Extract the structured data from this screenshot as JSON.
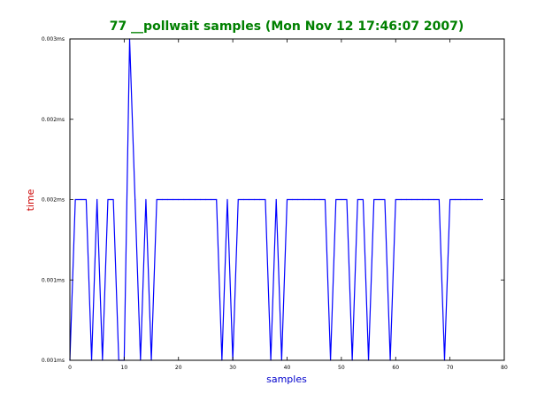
{
  "chart_data": {
    "type": "line",
    "title": "77 __pollwait samples (Mon Nov 12 17:46:07 2007)",
    "xlabel": "samples",
    "ylabel": "time",
    "xlim": [
      0,
      80
    ],
    "ylim": [
      0.0005,
      0.0025
    ],
    "x_ticks": [
      0,
      10,
      20,
      30,
      40,
      50,
      60,
      70,
      80
    ],
    "x_tick_labels": [
      "0",
      "10",
      "20",
      "30",
      "40",
      "50",
      "60",
      "70",
      "80"
    ],
    "y_ticks": [
      0.0005,
      0.001,
      0.0015,
      0.002,
      0.0025
    ],
    "y_tick_labels": [
      "0.001ms",
      "0.001ms",
      "0.002ms",
      "0.002ms",
      "0.003ms"
    ],
    "grid": false,
    "colors": {
      "title": "#008000",
      "xlabel": "#0000cc",
      "ylabel": "#cc0000",
      "line": "#0000ff"
    },
    "series": [
      {
        "values": [
          0.0005,
          0.0015,
          0.0015,
          0.0015,
          0.0005,
          0.0015,
          0.0005,
          0.0015,
          0.0015,
          0.0005,
          0.0005,
          0.0025,
          0.0015,
          0.0005,
          0.0015,
          0.0005,
          0.0015,
          0.0015,
          0.0015,
          0.0015,
          0.0015,
          0.0015,
          0.0015,
          0.0015,
          0.0015,
          0.0015,
          0.0015,
          0.0015,
          0.0005,
          0.0015,
          0.0005,
          0.0015,
          0.0015,
          0.0015,
          0.0015,
          0.0015,
          0.0015,
          0.0005,
          0.0015,
          0.0005,
          0.0015,
          0.0015,
          0.0015,
          0.0015,
          0.0015,
          0.0015,
          0.0015,
          0.0015,
          0.0005,
          0.0015,
          0.0015,
          0.0015,
          0.0005,
          0.0015,
          0.0015,
          0.0005,
          0.0015,
          0.0015,
          0.0015,
          0.0005,
          0.0015,
          0.0015,
          0.0015,
          0.0015,
          0.0015,
          0.0015,
          0.0015,
          0.0015,
          0.0015,
          0.0005,
          0.0015,
          0.0015,
          0.0015,
          0.0015,
          0.0015,
          0.0015,
          0.0015
        ]
      }
    ]
  }
}
